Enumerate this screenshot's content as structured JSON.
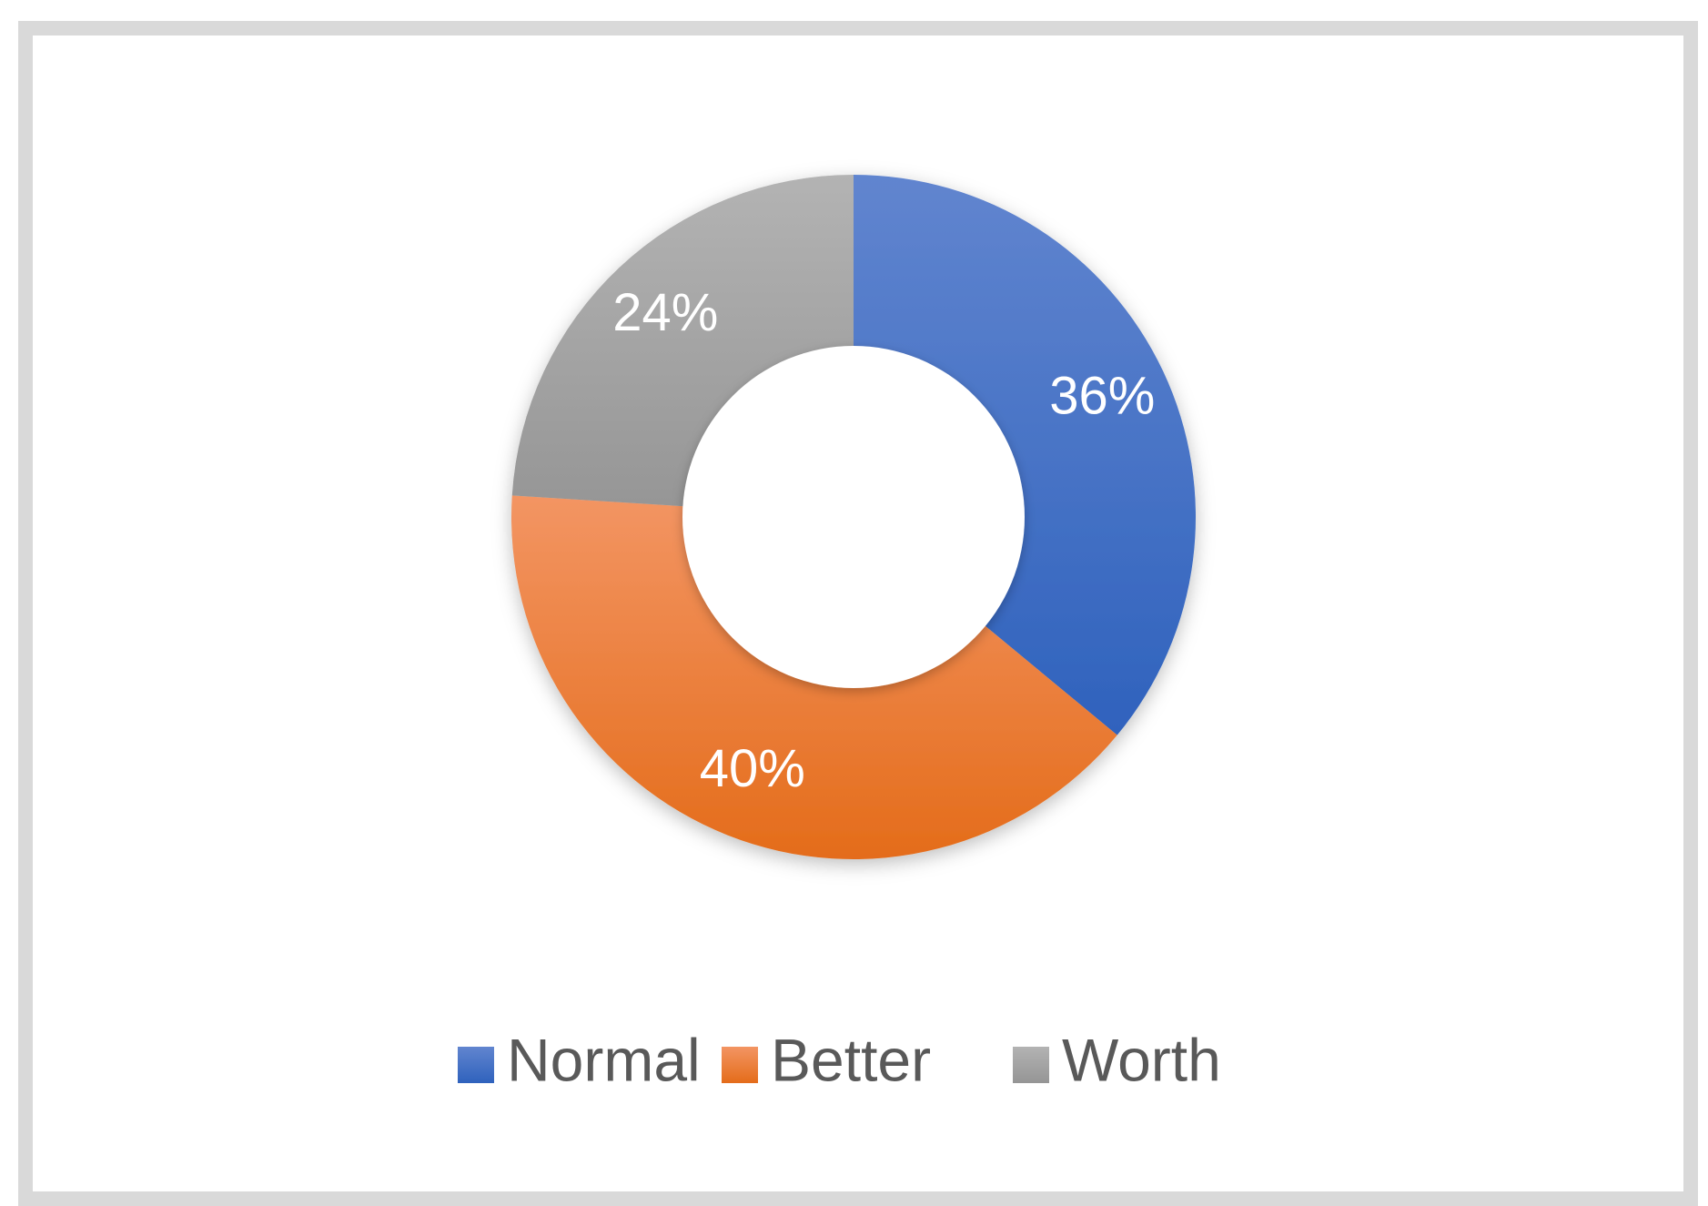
{
  "chart_data": {
    "type": "pie",
    "variant": "donut",
    "categories": [
      "Normal",
      "Better",
      "Worth"
    ],
    "values": [
      36,
      40,
      24
    ],
    "labels": [
      "36%",
      "40%",
      "24%"
    ],
    "unit": "%",
    "colors": [
      "#4472C4",
      "#ED7D31",
      "#A5A5A5"
    ],
    "title": "",
    "legend": {
      "position": "bottom",
      "entries": [
        "Normal",
        "Better",
        "Worth"
      ]
    }
  }
}
